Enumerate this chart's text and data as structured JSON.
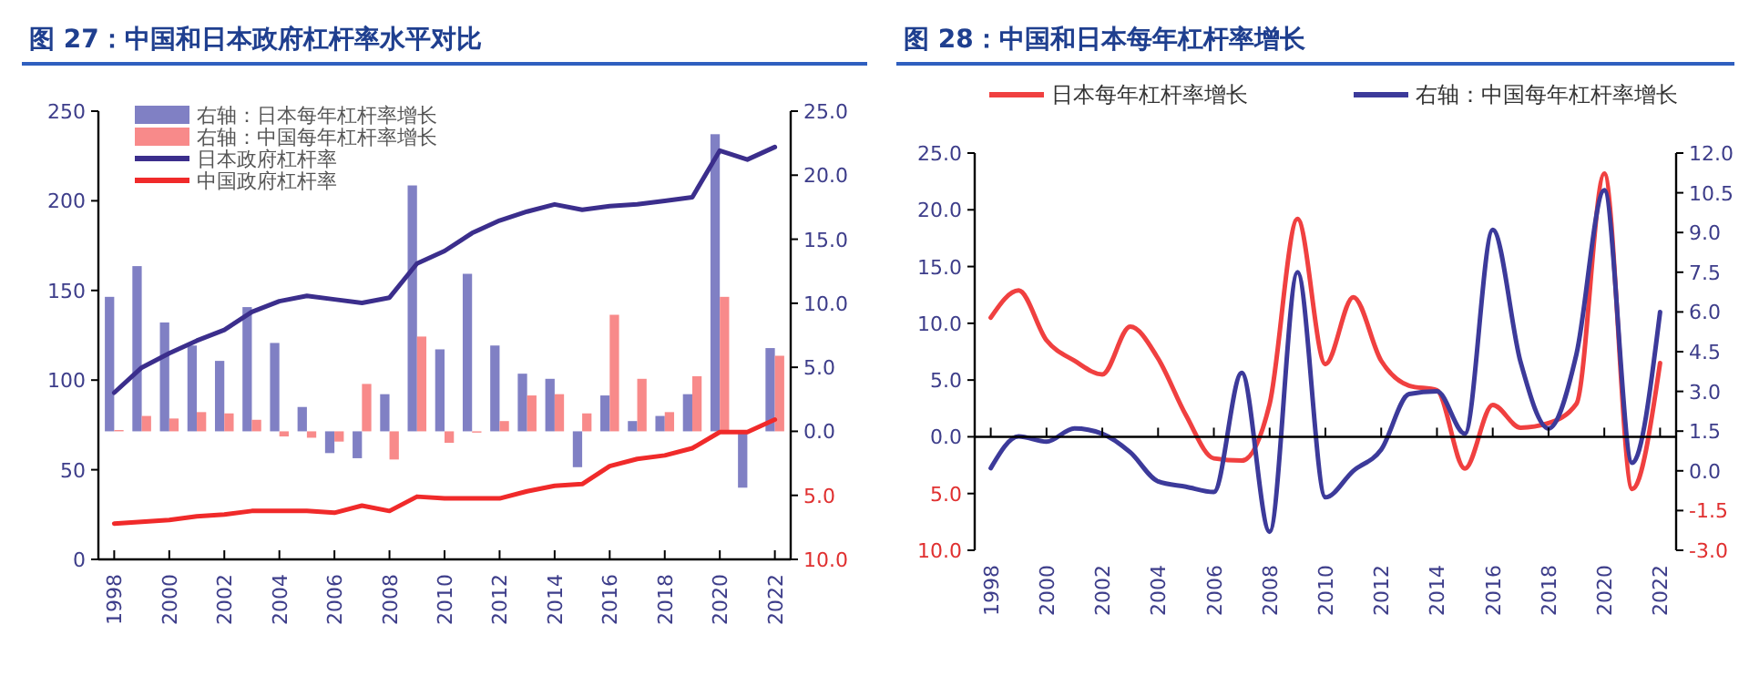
{
  "chart_data": [
    {
      "type": "bar",
      "title": "图 27：中国和日本政府杠杆率水平对比",
      "categories": [
        "1998",
        null,
        "2000",
        null,
        "2002",
        null,
        "2004",
        null,
        "2006",
        null,
        "2008",
        null,
        "2010",
        null,
        "2012",
        null,
        "2014",
        null,
        "2016",
        null,
        "2018",
        null,
        "2020",
        null,
        "2022"
      ],
      "series": [
        {
          "name": "右轴：日本每年杠杆率增长",
          "type": "bar",
          "axis": "y2",
          "color": "#8080c4",
          "values": [
            10.5,
            12.9,
            8.5,
            6.7,
            5.5,
            9.7,
            6.9,
            1.9,
            -1.7,
            -2.1,
            2.9,
            19.2,
            6.4,
            12.3,
            6.7,
            4.5,
            4.1,
            -2.8,
            2.8,
            0.8,
            1.2,
            2.9,
            23.2,
            -4.4,
            6.5
          ]
        },
        {
          "name": "右轴：中国每年杠杆率增长",
          "type": "bar",
          "axis": "y2",
          "color": "#f88a8a",
          "values": [
            0.1,
            1.2,
            1.0,
            1.5,
            1.4,
            0.9,
            -0.4,
            -0.5,
            -0.8,
            3.7,
            -2.2,
            7.4,
            -0.9,
            -0.1,
            0.8,
            2.8,
            2.9,
            1.4,
            9.1,
            4.1,
            1.5,
            4.3,
            10.5,
            null,
            5.9
          ]
        },
        {
          "name": "日本政府杠杆率",
          "type": "line",
          "color": "#3b2e8c",
          "values": [
            93,
            107,
            115,
            122,
            128,
            138,
            144,
            147,
            145,
            143,
            146,
            165,
            172,
            182,
            189,
            194,
            198,
            195,
            197,
            198,
            200,
            202,
            228,
            223,
            230
          ]
        },
        {
          "name": "中国政府杠杆率",
          "type": "line",
          "color": "#f02a2a",
          "values": [
            20,
            21,
            22,
            24,
            25,
            27,
            27,
            27,
            26,
            30,
            27,
            35,
            34,
            34,
            34,
            38,
            41,
            42,
            52,
            56,
            58,
            62,
            71,
            71,
            78
          ]
        }
      ],
      "ylim": [
        0,
        250
      ],
      "yticks": [
        0,
        50,
        100,
        150,
        200,
        250
      ],
      "y2lim": [
        -10,
        25
      ],
      "y2ticks": [
        {
          "value": -10,
          "label": "10.0"
        },
        {
          "value": -5,
          "label": "5.0"
        },
        {
          "value": 0,
          "label": "0.0"
        },
        {
          "value": 5,
          "label": "5.0"
        },
        {
          "value": 10,
          "label": "10.0"
        },
        {
          "value": 15,
          "label": "15.0"
        },
        {
          "value": 20,
          "label": "20.0"
        },
        {
          "value": 25,
          "label": "25.0"
        }
      ],
      "legend": "top left"
    },
    {
      "type": "line",
      "title": "图 28：中国和日本每年杠杆率增长",
      "categories": [
        "1998",
        null,
        "2000",
        null,
        "2002",
        null,
        "2004",
        null,
        "2006",
        null,
        "2008",
        null,
        "2010",
        null,
        "2012",
        null,
        "2014",
        null,
        "2016",
        null,
        "2018",
        null,
        "2020",
        null,
        "2022"
      ],
      "series": [
        {
          "name": "日本每年杠杆率增长",
          "color": "#f04040",
          "values": [
            10.5,
            12.9,
            8.5,
            6.7,
            5.5,
            9.7,
            6.9,
            1.9,
            -1.9,
            -2.1,
            2.9,
            19.2,
            6.4,
            12.3,
            6.7,
            4.5,
            4.1,
            -2.8,
            2.8,
            0.8,
            1.2,
            2.9,
            23.2,
            -4.6,
            6.5
          ]
        },
        {
          "name": "右轴：中国每年杠杆率增长",
          "axis": "y2",
          "color": "#3c3a9a",
          "values": [
            0.1,
            1.3,
            1.1,
            1.6,
            1.4,
            0.7,
            -0.4,
            -0.6,
            -0.8,
            3.7,
            -2.3,
            7.5,
            -1.0,
            0.0,
            0.8,
            2.9,
            3.0,
            1.4,
            9.1,
            4.1,
            1.6,
            4.4,
            10.6,
            0.3,
            6.0
          ]
        }
      ],
      "ylim": [
        -10,
        25
      ],
      "yticks": [
        {
          "value": -10,
          "label": "10.0"
        },
        {
          "value": -5,
          "label": "5.0"
        },
        {
          "value": 0,
          "label": "0.0"
        },
        {
          "value": 5,
          "label": "5.0"
        },
        {
          "value": 10,
          "label": "10.0"
        },
        {
          "value": 15,
          "label": "15.0"
        },
        {
          "value": 20,
          "label": "20.0"
        },
        {
          "value": 25,
          "label": "25.0"
        }
      ],
      "y2lim": [
        -3,
        12
      ],
      "y2ticks": [
        {
          "value": -3,
          "label": "-3.0"
        },
        {
          "value": -1.5,
          "label": "-1.5"
        },
        {
          "value": 0,
          "label": "0.0"
        },
        {
          "value": 1.5,
          "label": "1.5"
        },
        {
          "value": 3,
          "label": "3.0"
        },
        {
          "value": 4.5,
          "label": "4.5"
        },
        {
          "value": 6,
          "label": "6.0"
        },
        {
          "value": 7.5,
          "label": "7.5"
        },
        {
          "value": 9,
          "label": "9.0"
        },
        {
          "value": 10.5,
          "label": "10.5"
        },
        {
          "value": 12,
          "label": "12.0"
        }
      ],
      "legend": "top"
    }
  ]
}
